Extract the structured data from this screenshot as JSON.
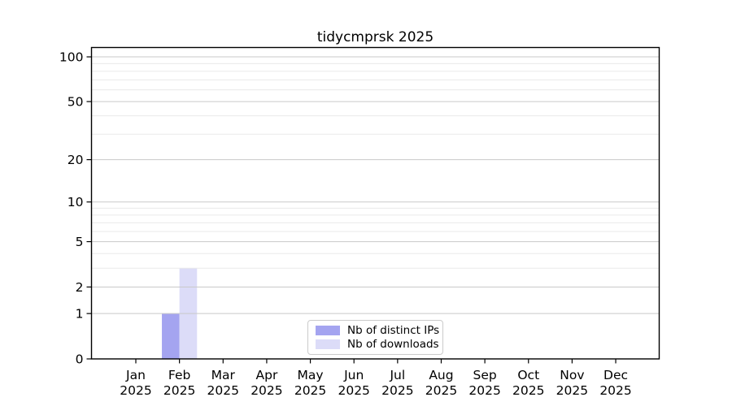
{
  "chart_data": {
    "type": "bar",
    "title": "tidycmprsk 2025",
    "categories": [
      "Jan 2025",
      "Feb 2025",
      "Mar 2025",
      "Apr 2025",
      "May 2025",
      "Jun 2025",
      "Jul 2025",
      "Aug 2025",
      "Sep 2025",
      "Oct 2025",
      "Nov 2025",
      "Dec 2025"
    ],
    "series": [
      {
        "name": "Nb of distinct IPs",
        "color": "#a4a4f0",
        "values": [
          0,
          1,
          0,
          0,
          0,
          0,
          0,
          0,
          0,
          0,
          0,
          0
        ]
      },
      {
        "name": "Nb of downloads",
        "color": "#dcdcf8",
        "values": [
          0,
          3,
          0,
          0,
          0,
          0,
          0,
          0,
          0,
          0,
          0,
          0
        ]
      }
    ],
    "xlabel": "",
    "ylabel": "",
    "y_axis": {
      "scale": "log1p",
      "ticks": [
        0,
        1,
        2,
        5,
        10,
        20,
        50,
        100
      ],
      "minor_ticks": [
        3,
        4,
        6,
        7,
        8,
        9,
        30,
        40,
        60,
        70,
        80,
        90
      ],
      "range": [
        0,
        114
      ]
    },
    "grid": true,
    "legend_position": "inside-bottom-center"
  },
  "colors": {
    "bar_distinct_ips": "#a4a4f0",
    "bar_downloads": "#dcdcf8",
    "grid_major": "#c9c9c9",
    "grid_minor": "#eaeaea",
    "frame": "#000000",
    "text": "#000000",
    "legend_border": "#cbcbcb",
    "background": "#ffffff"
  }
}
